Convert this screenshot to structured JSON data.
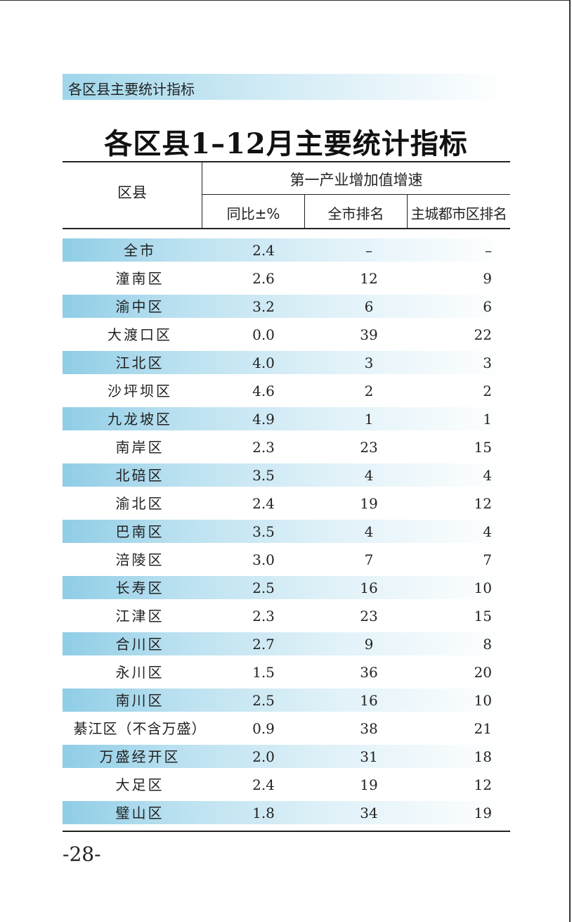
{
  "section_header": "各区县主要统计指标",
  "title": "各区县1–12月主要统计指标",
  "table": {
    "district_header": "区县",
    "group_header": "第一产业增加值增速",
    "col_yoy": "同比±%",
    "col_city_rank": "全市排名",
    "col_main_rank": "主城都市区排名",
    "rows": [
      {
        "name": "全市",
        "yoy": "2.4",
        "city_rank": "–",
        "main_rank": "–"
      },
      {
        "name": "潼南区",
        "yoy": "2.6",
        "city_rank": "12",
        "main_rank": "9"
      },
      {
        "name": "渝中区",
        "yoy": "3.2",
        "city_rank": "6",
        "main_rank": "6"
      },
      {
        "name": "大渡口区",
        "yoy": "0.0",
        "city_rank": "39",
        "main_rank": "22"
      },
      {
        "name": "江北区",
        "yoy": "4.0",
        "city_rank": "3",
        "main_rank": "3"
      },
      {
        "name": "沙坪坝区",
        "yoy": "4.6",
        "city_rank": "2",
        "main_rank": "2"
      },
      {
        "name": "九龙坡区",
        "yoy": "4.9",
        "city_rank": "1",
        "main_rank": "1"
      },
      {
        "name": "南岸区",
        "yoy": "2.3",
        "city_rank": "23",
        "main_rank": "15"
      },
      {
        "name": "北碚区",
        "yoy": "3.5",
        "city_rank": "4",
        "main_rank": "4"
      },
      {
        "name": "渝北区",
        "yoy": "2.4",
        "city_rank": "19",
        "main_rank": "12"
      },
      {
        "name": "巴南区",
        "yoy": "3.5",
        "city_rank": "4",
        "main_rank": "4"
      },
      {
        "name": "涪陵区",
        "yoy": "3.0",
        "city_rank": "7",
        "main_rank": "7"
      },
      {
        "name": "长寿区",
        "yoy": "2.5",
        "city_rank": "16",
        "main_rank": "10"
      },
      {
        "name": "江津区",
        "yoy": "2.3",
        "city_rank": "23",
        "main_rank": "15"
      },
      {
        "name": "合川区",
        "yoy": "2.7",
        "city_rank": "9",
        "main_rank": "8"
      },
      {
        "name": "永川区",
        "yoy": "1.5",
        "city_rank": "36",
        "main_rank": "20"
      },
      {
        "name": "南川区",
        "yoy": "2.5",
        "city_rank": "16",
        "main_rank": "10"
      },
      {
        "name": "綦江区（不含万盛）",
        "yoy": "0.9",
        "city_rank": "38",
        "main_rank": "21"
      },
      {
        "name": "万盛经开区",
        "yoy": "2.0",
        "city_rank": "31",
        "main_rank": "18"
      },
      {
        "name": "大足区",
        "yoy": "2.4",
        "city_rank": "19",
        "main_rank": "12"
      },
      {
        "name": "璧山区",
        "yoy": "1.8",
        "city_rank": "34",
        "main_rank": "19"
      }
    ]
  },
  "page_number": "-28-"
}
